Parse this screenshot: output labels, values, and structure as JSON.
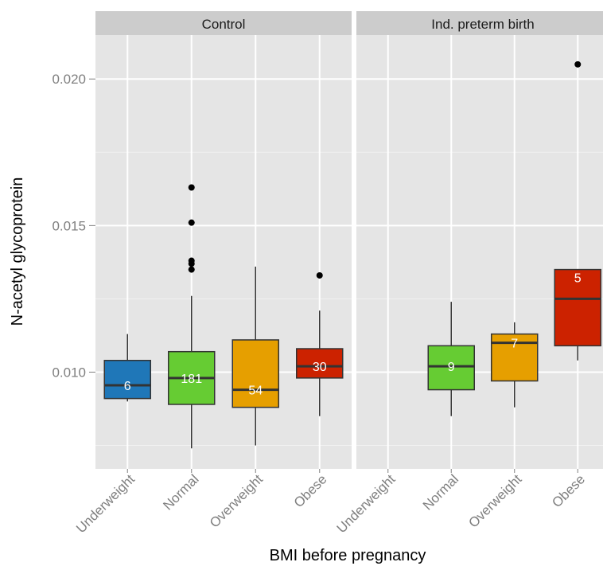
{
  "chart_data": {
    "type": "boxplot",
    "xlabel": "BMI before pregnancy",
    "ylabel": "N-acetyl glycoprotein",
    "ylim": [
      0.0067,
      0.0215
    ],
    "y_ticks": [
      0.01,
      0.015,
      0.02
    ],
    "y_tick_labels": [
      "0.010",
      "0.015",
      "0.020"
    ],
    "categories": [
      "Underweight",
      "Normal",
      "Overweight",
      "Obese"
    ],
    "colors": {
      "Underweight": "#1f77b8",
      "Normal": "#66cc33",
      "Overweight": "#e69f00",
      "Obese": "#cc2200"
    },
    "grid": true,
    "facets": [
      {
        "title": "Control",
        "boxes": [
          {
            "category": "Underweight",
            "n_label": "6",
            "whisker_low": 0.009,
            "q1": 0.0091,
            "median": 0.00955,
            "q3": 0.0104,
            "whisker_high": 0.0113,
            "outliers": []
          },
          {
            "category": "Normal",
            "n_label": "181",
            "whisker_low": 0.0074,
            "q1": 0.0089,
            "median": 0.0098,
            "q3": 0.0107,
            "whisker_high": 0.0126,
            "outliers": [
              0.0135,
              0.0137,
              0.0138,
              0.0151,
              0.0163
            ]
          },
          {
            "category": "Overweight",
            "n_label": "54",
            "whisker_low": 0.0075,
            "q1": 0.0088,
            "median": 0.0094,
            "q3": 0.0111,
            "whisker_high": 0.0136,
            "outliers": []
          },
          {
            "category": "Obese",
            "n_label": "30",
            "whisker_low": 0.0085,
            "q1": 0.0098,
            "median": 0.0102,
            "q3": 0.0108,
            "whisker_high": 0.0121,
            "outliers": [
              0.0133
            ]
          }
        ]
      },
      {
        "title": "Ind. preterm birth",
        "boxes": [
          {
            "category": "Normal",
            "n_label": "9",
            "whisker_low": 0.0085,
            "q1": 0.0094,
            "median": 0.0102,
            "q3": 0.0109,
            "whisker_high": 0.0124,
            "outliers": []
          },
          {
            "category": "Overweight",
            "n_label": "7",
            "whisker_low": 0.0088,
            "q1": 0.0097,
            "median": 0.011,
            "q3": 0.0113,
            "whisker_high": 0.0117,
            "outliers": []
          },
          {
            "category": "Obese",
            "n_label": "5",
            "whisker_low": 0.0104,
            "q1": 0.0109,
            "median": 0.0125,
            "q3": 0.0135,
            "whisker_high": 0.0135,
            "outliers": [
              0.0205
            ]
          }
        ]
      }
    ]
  }
}
